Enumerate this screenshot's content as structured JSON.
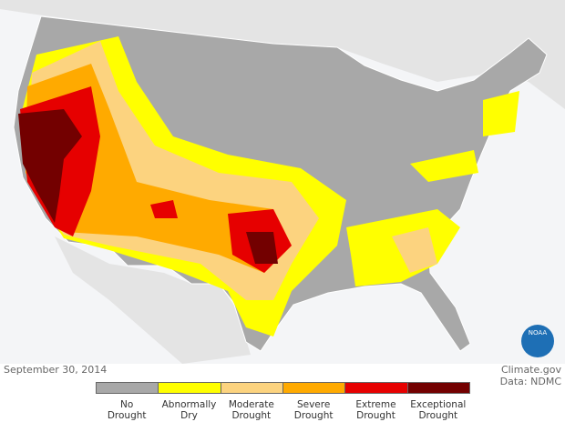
{
  "date": "September 30, 2014",
  "credit": "Climate.gov",
  "source": "Data: NDMC",
  "logo": "NOAA",
  "legend": [
    {
      "label": "No Drought",
      "color": "#a8a8a8"
    },
    {
      "label": "Abnormally Dry",
      "color": "#ffff00"
    },
    {
      "label": "Moderate Drought",
      "color": "#fcd37f"
    },
    {
      "label": "Severe Drought",
      "color": "#ffaa00"
    },
    {
      "label": "Extreme Drought",
      "color": "#e60000"
    },
    {
      "label": "Exceptional Drought",
      "color": "#730000"
    }
  ]
}
